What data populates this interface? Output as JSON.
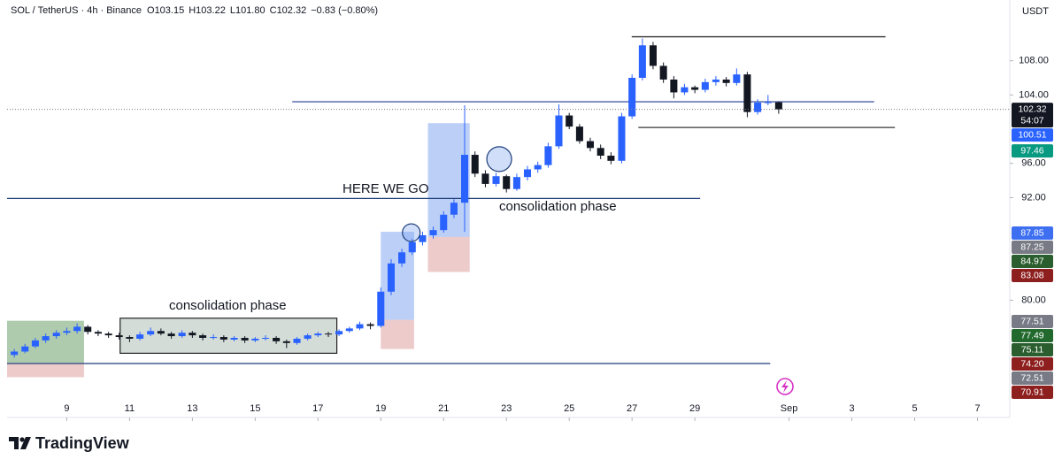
{
  "chart_data": {
    "type": "candlestick",
    "symbol": "SOL / TetherUS · 4h · Binance",
    "quote": [
      {
        "key": "O",
        "value": "103.15"
      },
      {
        "key": "H",
        "value": "103.22"
      },
      {
        "key": "L",
        "value": "101.80"
      },
      {
        "key": "C",
        "value": "102.32"
      }
    ],
    "change": "−0.83 (−0.80%)",
    "currency": "USDT",
    "brand": "TradingView",
    "annotations": [
      "HERE WE GO",
      "consolidation phase",
      "consolidation phase"
    ],
    "up_color": "#2962ff",
    "down_color": "#131722",
    "xlim": [
      7.1,
      39
    ],
    "ylim": [
      66.5,
      115.1
    ],
    "xticks": [
      9,
      11,
      13,
      15,
      17,
      19,
      21,
      23,
      25,
      27,
      29,
      {
        "value": 32,
        "label": "Sep"
      },
      {
        "value": 34,
        "label": "3"
      },
      {
        "value": 36,
        "label": "5"
      },
      {
        "value": 38,
        "label": "7"
      }
    ],
    "yticks": [
      {
        "value": 108,
        "label": "108.00"
      },
      {
        "value": 104,
        "label": "104.00"
      },
      {
        "value": 96,
        "label": "96.00"
      },
      {
        "value": 92,
        "label": "92.00"
      },
      {
        "value": 80,
        "label": "80.00"
      }
    ],
    "candles": [
      [
        7.33,
        73.6,
        74.3,
        73.3,
        74.0
      ],
      [
        7.67,
        74.0,
        74.9,
        73.8,
        74.6
      ],
      [
        8.0,
        74.6,
        75.6,
        74.4,
        75.3
      ],
      [
        8.33,
        75.3,
        76.1,
        75.0,
        75.8
      ],
      [
        8.67,
        75.8,
        76.5,
        75.5,
        76.2
      ],
      [
        9.0,
        76.2,
        76.8,
        75.9,
        76.4
      ],
      [
        9.33,
        76.4,
        77.3,
        76.1,
        76.9
      ],
      [
        9.67,
        76.9,
        77.1,
        76.0,
        76.3
      ],
      [
        10.0,
        76.3,
        76.5,
        75.8,
        76.1
      ],
      [
        10.33,
        76.1,
        76.3,
        75.6,
        75.9
      ],
      [
        10.67,
        75.9,
        76.2,
        75.4,
        75.7
      ],
      [
        11.0,
        75.7,
        75.9,
        75.1,
        75.5
      ],
      [
        11.33,
        75.5,
        76.3,
        75.3,
        76.0
      ],
      [
        11.67,
        76.0,
        76.8,
        75.8,
        76.4
      ],
      [
        12.0,
        76.4,
        76.7,
        75.9,
        76.1
      ],
      [
        12.33,
        76.1,
        76.3,
        75.5,
        75.8
      ],
      [
        12.67,
        75.8,
        76.5,
        75.6,
        76.2
      ],
      [
        13.0,
        76.2,
        76.4,
        75.6,
        75.9
      ],
      [
        13.33,
        75.9,
        76.1,
        75.3,
        75.6
      ],
      [
        13.67,
        75.6,
        76.0,
        75.4,
        75.7
      ],
      [
        14.0,
        75.7,
        75.9,
        75.1,
        75.4
      ],
      [
        14.33,
        75.4,
        75.8,
        75.2,
        75.6
      ],
      [
        14.67,
        75.6,
        75.8,
        75.0,
        75.3
      ],
      [
        15.0,
        75.3,
        75.7,
        75.1,
        75.5
      ],
      [
        15.33,
        75.5,
        75.9,
        75.3,
        75.6
      ],
      [
        15.67,
        75.6,
        75.8,
        74.9,
        75.2
      ],
      [
        16.0,
        75.2,
        75.4,
        74.4,
        75.0
      ],
      [
        16.33,
        75.0,
        75.7,
        74.8,
        75.5
      ],
      [
        16.67,
        75.5,
        76.1,
        75.3,
        75.9
      ],
      [
        17.0,
        75.9,
        76.3,
        75.7,
        76.1
      ],
      [
        17.33,
        76.1,
        76.3,
        75.7,
        76.0
      ],
      [
        17.67,
        76.0,
        76.6,
        75.8,
        76.4
      ],
      [
        18.0,
        76.4,
        76.9,
        76.2,
        76.7
      ],
      [
        18.33,
        76.7,
        77.5,
        76.5,
        77.2
      ],
      [
        18.67,
        77.2,
        77.4,
        76.6,
        77.0
      ],
      [
        19.0,
        77.0,
        81.5,
        76.8,
        81.0
      ],
      [
        19.33,
        81.0,
        84.8,
        80.6,
        84.3
      ],
      [
        19.67,
        84.3,
        86.0,
        83.9,
        85.6
      ],
      [
        20.0,
        85.6,
        87.2,
        85.3,
        86.8
      ],
      [
        20.33,
        86.8,
        88.0,
        86.4,
        87.6
      ],
      [
        20.67,
        87.6,
        88.6,
        87.2,
        88.2
      ],
      [
        21.0,
        88.2,
        90.4,
        87.9,
        90.0
      ],
      [
        21.33,
        90.0,
        91.8,
        89.6,
        91.4
      ],
      [
        21.67,
        91.4,
        102.8,
        88.0,
        97.0
      ],
      [
        22.0,
        97.0,
        97.4,
        94.4,
        94.8
      ],
      [
        22.33,
        94.8,
        95.2,
        93.2,
        93.6
      ],
      [
        22.67,
        93.6,
        94.9,
        93.3,
        94.5
      ],
      [
        23.0,
        94.5,
        94.7,
        92.6,
        93.0
      ],
      [
        23.33,
        93.0,
        94.8,
        92.8,
        94.4
      ],
      [
        23.67,
        94.4,
        95.7,
        94.0,
        95.3
      ],
      [
        24.0,
        95.3,
        96.2,
        94.9,
        95.8
      ],
      [
        24.33,
        95.8,
        98.4,
        95.5,
        98.0
      ],
      [
        24.67,
        98.0,
        102.9,
        97.7,
        101.6
      ],
      [
        25.0,
        101.6,
        101.9,
        100.0,
        100.3
      ],
      [
        25.33,
        100.3,
        100.6,
        98.3,
        98.6
      ],
      [
        25.67,
        98.6,
        99.0,
        97.4,
        97.8
      ],
      [
        26.0,
        97.8,
        98.2,
        96.5,
        96.9
      ],
      [
        26.33,
        96.9,
        97.3,
        95.9,
        96.3
      ],
      [
        26.67,
        96.3,
        101.9,
        96.0,
        101.5
      ],
      [
        27.0,
        101.5,
        106.4,
        101.2,
        106.0
      ],
      [
        27.33,
        106.0,
        110.6,
        105.7,
        109.8
      ],
      [
        27.67,
        109.8,
        110.2,
        107.0,
        107.4
      ],
      [
        28.0,
        107.4,
        107.8,
        105.4,
        105.8
      ],
      [
        28.33,
        105.8,
        106.2,
        103.6,
        104.3
      ],
      [
        28.67,
        104.3,
        105.3,
        104.0,
        104.9
      ],
      [
        29.0,
        104.9,
        105.1,
        104.2,
        104.6
      ],
      [
        29.33,
        104.6,
        105.9,
        104.3,
        105.5
      ],
      [
        29.67,
        105.5,
        106.2,
        105.1,
        105.8
      ],
      [
        30.0,
        105.8,
        106.1,
        105.0,
        105.4
      ],
      [
        30.33,
        105.4,
        107.1,
        105.1,
        106.4
      ],
      [
        30.67,
        106.4,
        106.7,
        101.4,
        102.0
      ],
      [
        31.0,
        102.0,
        103.5,
        101.7,
        103.1
      ],
      [
        31.33,
        103.1,
        104.0,
        102.8,
        103.15
      ],
      [
        31.67,
        103.15,
        103.22,
        101.8,
        102.32
      ]
    ],
    "zones": [
      {
        "x": [
          7.1,
          9.55
        ],
        "y": [
          72.7,
          77.6
        ],
        "color": "rgba(76,140,76,0.45)"
      },
      {
        "x": [
          7.1,
          9.55
        ],
        "y": [
          71.0,
          72.7
        ],
        "color": "rgba(214,140,140,0.45)"
      },
      {
        "x": [
          10.7,
          17.6
        ],
        "y": [
          73.8,
          77.9
        ],
        "color": "rgba(110,140,120,0.3)",
        "stroke": "#222"
      },
      {
        "x": [
          19.0,
          20.06
        ],
        "y": [
          77.7,
          88.0
        ],
        "color": "rgba(120,160,240,0.5)"
      },
      {
        "x": [
          19.0,
          20.06
        ],
        "y": [
          74.3,
          77.7
        ],
        "color": "rgba(214,140,140,0.45)"
      },
      {
        "x": [
          20.5,
          21.83
        ],
        "y": [
          87.4,
          100.7
        ],
        "color": "rgba(120,160,240,0.5)"
      },
      {
        "x": [
          20.5,
          21.83
        ],
        "y": [
          83.3,
          87.4
        ],
        "color": "rgba(214,140,140,0.45)"
      }
    ],
    "levels": [
      {
        "y": 103.2,
        "x": [
          16.18,
          34.71
        ],
        "color": "#4a5fa8"
      },
      {
        "y": 91.9,
        "x": [
          7.1,
          29.17
        ],
        "color": "#1f3f7a"
      },
      {
        "y": 72.6,
        "x": [
          7.1,
          31.4
        ],
        "color": "#1f3f7a"
      },
      {
        "y": 110.8,
        "x": [
          26.99,
          35.07
        ],
        "color": "#333"
      },
      {
        "y": 100.2,
        "x": [
          27.2,
          35.37
        ],
        "color": "#333"
      }
    ],
    "circles": [
      {
        "x": 19.97,
        "y": 87.9
      },
      {
        "x": 22.77,
        "y": 96.5
      }
    ],
    "price_tags": [
      {
        "value": 102.32,
        "label": "102.32",
        "color": "#131722",
        "sub": "54:07"
      },
      {
        "value": 100.51,
        "label": "100.51",
        "color": "#2962ff"
      },
      {
        "value": 97.46,
        "label": "97.46",
        "color": "#089981"
      },
      {
        "value": 87.85,
        "label": "87.85",
        "color": "#3d6ff0"
      },
      {
        "value": 87.25,
        "label": "87.25",
        "color": "#787b86"
      },
      {
        "value": 84.97,
        "label": "84.97",
        "color": "#2a5e2e"
      },
      {
        "value": 83.08,
        "label": "83.08",
        "color": "#8e1f1f"
      },
      {
        "value": 77.51,
        "label": "77.51",
        "color": "#787b86"
      },
      {
        "value": 77.49,
        "label": "77.49",
        "color": "#22692e"
      },
      {
        "value": 75.11,
        "label": "75.11",
        "color": "#2a5e2e"
      },
      {
        "value": 74.2,
        "label": "74.20",
        "color": "#8e1f1f"
      },
      {
        "value": 72.51,
        "label": "72.51",
        "color": "#787b86"
      },
      {
        "value": 70.91,
        "label": "70.91",
        "color": "#8e1f1f"
      }
    ]
  }
}
